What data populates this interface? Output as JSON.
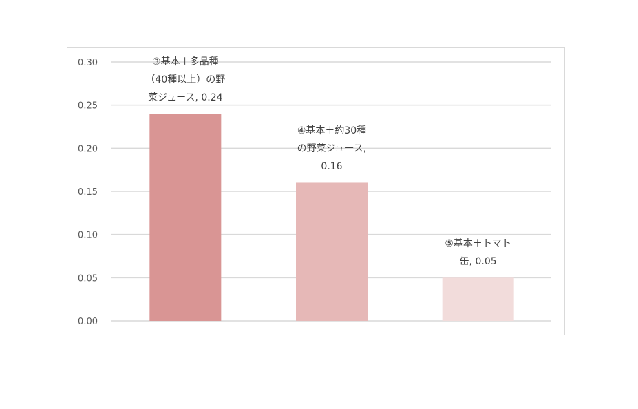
{
  "chart_data": {
    "type": "bar",
    "categories": [
      "③基本＋多品種（40種以上）の野菜ジュース",
      "④基本＋約30種の野菜ジュース",
      "⑤基本＋トマト缶"
    ],
    "values": [
      0.24,
      0.16,
      0.05
    ],
    "data_labels": [
      [
        "③基本＋多品種",
        "（40種以上）の野",
        "菜ジュース, 0.24"
      ],
      [
        "④基本＋約30種",
        "の野菜ジュース,",
        "0.16"
      ],
      [
        "⑤基本＋トマト",
        "缶, 0.05"
      ]
    ],
    "colors": [
      "#d99594",
      "#e6b8b7",
      "#f2dcdb"
    ],
    "ylim": [
      0,
      0.3
    ],
    "yticks": [
      "0.00",
      "0.05",
      "0.10",
      "0.15",
      "0.20",
      "0.25",
      "0.30"
    ],
    "grid": true,
    "legend": "none",
    "title": "",
    "xlabel": "",
    "ylabel": ""
  }
}
